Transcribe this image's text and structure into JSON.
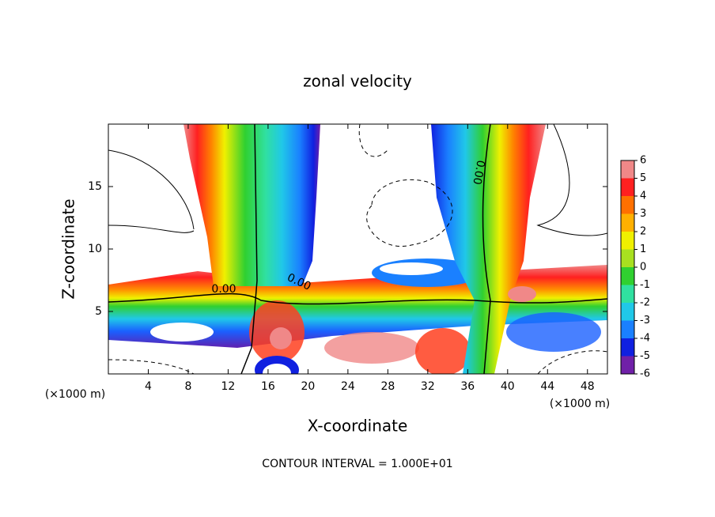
{
  "chart_data": {
    "type": "contour",
    "title": "zonal velocity",
    "x_label": "X-coordinate",
    "y_label": "Z-coordinate",
    "x_unit": "(×1000 m)",
    "y_unit": "(×1000 m)",
    "footer": "CONTOUR INTERVAL = 1.000E+01",
    "xlim": [
      0,
      50
    ],
    "xticks": [
      4,
      8,
      12,
      16,
      20,
      24,
      28,
      32,
      36,
      40,
      44,
      48
    ],
    "ylim": [
      0,
      20
    ],
    "yticks": [
      5,
      10,
      15
    ],
    "contour_labels": [
      "0.00",
      "0.00",
      "0.00"
    ],
    "colorbar": {
      "ticks": [
        6,
        5,
        4,
        3,
        2,
        1,
        0,
        -1,
        -2,
        -3,
        -4,
        -5,
        -6
      ],
      "colors": [
        "#f08888",
        "#ff2020",
        "#ff7000",
        "#ffb000",
        "#f0f000",
        "#a8e020",
        "#30d030",
        "#30e0a0",
        "#20c8e8",
        "#1a80ff",
        "#1020e0",
        "#7020a8"
      ]
    }
  }
}
